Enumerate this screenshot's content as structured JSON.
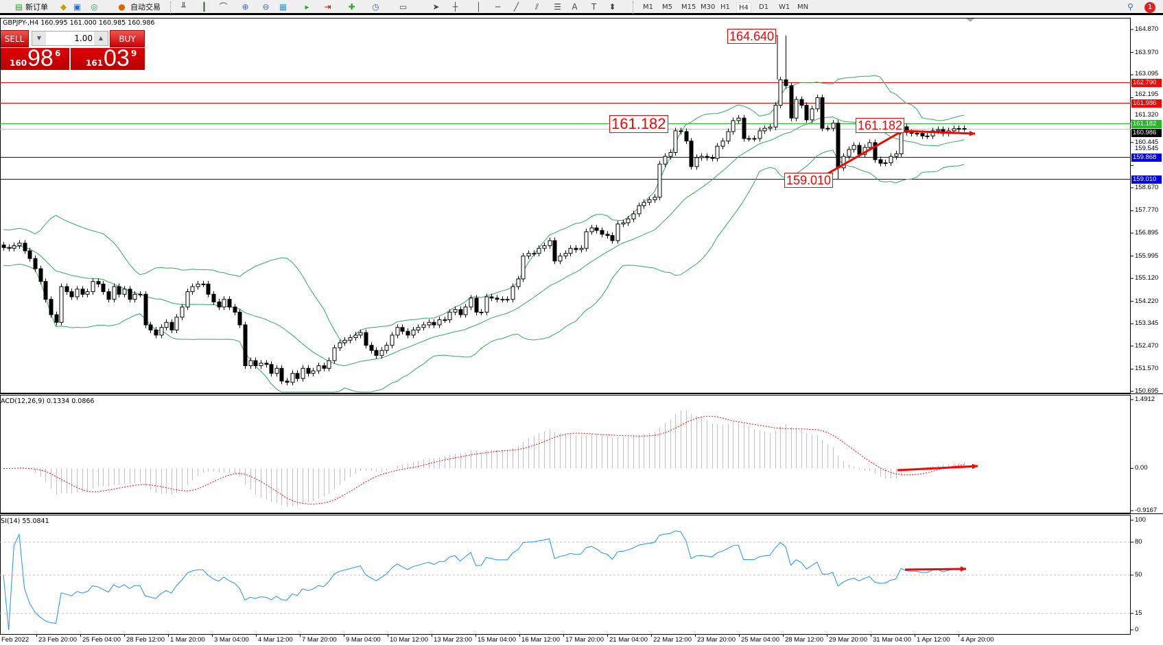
{
  "toolbar": {
    "new_order": "新订单",
    "auto_trade": "自动交易",
    "timeframes": [
      "M1",
      "M5",
      "M15",
      "M30",
      "H1",
      "H4",
      "D1",
      "W1",
      "MN"
    ],
    "active_timeframe": "H4",
    "notification_count": "1"
  },
  "chart_title": "GBPJPY-,H4  160.995 161.000 160.985 160.986",
  "trade_panel": {
    "sell_label": "SELL",
    "buy_label": "BUY",
    "lot": "1.00",
    "sell_price": {
      "prefix": "160",
      "big": "98",
      "sup": "6"
    },
    "buy_price": {
      "prefix": "161",
      "big": "03",
      "sup": "9"
    }
  },
  "chart_data": {
    "type": "candlestick",
    "symbol": "GBPJPY-",
    "timeframe": "H4",
    "ylim": [
      150.695,
      164.87
    ],
    "price_ticks": [
      "164.870",
      "163.970",
      "163.095",
      "162.195",
      "161.320",
      "160.445",
      "159.545",
      "158.670",
      "157.770",
      "156.895",
      "155.995",
      "155.120",
      "154.220",
      "153.345",
      "152.470",
      "151.570",
      "150.695"
    ],
    "closes": [
      156.33,
      156.3,
      156.4,
      156.5,
      156.2,
      155.9,
      155.5,
      155.0,
      154.3,
      153.7,
      153.4,
      154.8,
      154.6,
      154.4,
      154.7,
      154.5,
      154.6,
      155.0,
      154.9,
      154.6,
      154.3,
      154.8,
      154.5,
      154.7,
      154.3,
      154.5,
      154.5,
      153.3,
      153.1,
      152.9,
      153.2,
      153.4,
      153.1,
      153.6,
      154.0,
      154.6,
      154.8,
      154.9,
      154.9,
      154.5,
      154.2,
      154.0,
      154.3,
      154.0,
      153.8,
      153.3,
      151.7,
      151.9,
      151.7,
      151.8,
      151.75,
      151.4,
      151.6,
      151.1,
      151.05,
      151.4,
      151.2,
      151.6,
      151.4,
      151.5,
      151.7,
      151.6,
      151.9,
      152.4,
      152.6,
      152.7,
      152.8,
      152.9,
      153.0,
      152.5,
      152.3,
      152.1,
      152.3,
      152.5,
      152.9,
      153.2,
      153.05,
      152.9,
      153.1,
      153.2,
      153.3,
      153.4,
      153.3,
      153.5,
      153.5,
      153.8,
      153.9,
      153.7,
      154.0,
      154.35,
      153.8,
      153.8,
      154.4,
      154.35,
      154.3,
      154.3,
      154.3,
      154.8,
      155.1,
      156.0,
      156.1,
      156.1,
      156.3,
      156.4,
      156.6,
      155.8,
      156.0,
      156.1,
      156.3,
      156.25,
      156.3,
      156.95,
      157.1,
      157.0,
      156.85,
      156.8,
      156.6,
      157.25,
      157.3,
      157.45,
      157.65,
      157.97,
      158.1,
      158.2,
      158.3,
      159.6,
      159.9,
      160.05,
      160.9,
      160.87,
      160.5,
      159.5,
      159.85,
      159.9,
      159.85,
      159.82,
      160.3,
      160.5,
      160.87,
      161.3,
      161.4,
      160.6,
      160.6,
      160.6,
      160.9,
      161.0,
      161.05,
      161.9,
      162.9,
      162.67,
      161.4,
      162.13,
      161.9,
      161.33,
      161.76,
      162.2,
      161.0,
      161.0,
      161.2,
      159.45,
      159.9,
      160.17,
      160.33,
      159.98,
      160.25,
      160.44,
      159.77,
      159.63,
      159.65,
      159.9,
      160.0,
      161.06,
      160.84,
      160.8,
      160.8,
      160.7,
      160.7,
      160.9,
      160.95,
      160.8,
      160.9,
      160.98,
      160.99,
      160.986
    ],
    "wick_overrides": [
      {
        "i": 149,
        "high": 164.64
      },
      {
        "i": 159,
        "low": 159.01
      }
    ],
    "levels": [
      {
        "price": 162.79,
        "label": "162.790",
        "color": "#ff0000"
      },
      {
        "price": 161.986,
        "label": "161.986",
        "color": "#ff0000"
      },
      {
        "price": 161.182,
        "label": "161.182",
        "color": "#22bb22"
      },
      {
        "price": 160.986,
        "label": "160.986",
        "color": "#000000",
        "line": "#c0c0c0"
      },
      {
        "price": 159.868,
        "label": "159.868",
        "color": "#0000ee"
      },
      {
        "price": 159.01,
        "label": "159.010",
        "color": "#0000ee"
      }
    ],
    "annotations": [
      "164.640",
      "161.182",
      "161.182",
      "159.010"
    ],
    "indicators": {
      "bollinger_color": "#2eaa5e",
      "macd": {
        "label": "ACD(12,26,9) 0.1334 0.0866",
        "ticks": [
          "1.4912",
          "0.00",
          "-0.9167"
        ],
        "ylim": [
          -0.9167,
          1.4912
        ],
        "signal_color": "#ff0000",
        "hist_color": "#c0c0c0"
      },
      "rsi": {
        "label": "SI(14) 55.0841",
        "ticks": [
          "100",
          "80",
          "50",
          "15",
          "0"
        ],
        "levels": [
          80,
          50,
          15
        ],
        "color": "#1e90ff"
      }
    },
    "x_labels": [
      "Feb 2022",
      "23 Feb 20:00",
      "25 Feb 04:00",
      "28 Feb 12:00",
      "1 Mar 20:00",
      "3 Mar 04:00",
      "4 Mar 12:00",
      "7 Mar 20:00",
      "9 Mar 04:00",
      "10 Mar 12:00",
      "13 Mar 23:00",
      "15 Mar 04:00",
      "16 Mar 12:00",
      "17 Mar 20:00",
      "21 Mar 04:00",
      "22 Mar 12:00",
      "23 Mar 20:00",
      "25 Mar 04:00",
      "28 Mar 12:00",
      "29 Mar 20:00",
      "31 Mar 04:00",
      "1 Apr 12:00",
      "4 Apr 20:00"
    ]
  }
}
